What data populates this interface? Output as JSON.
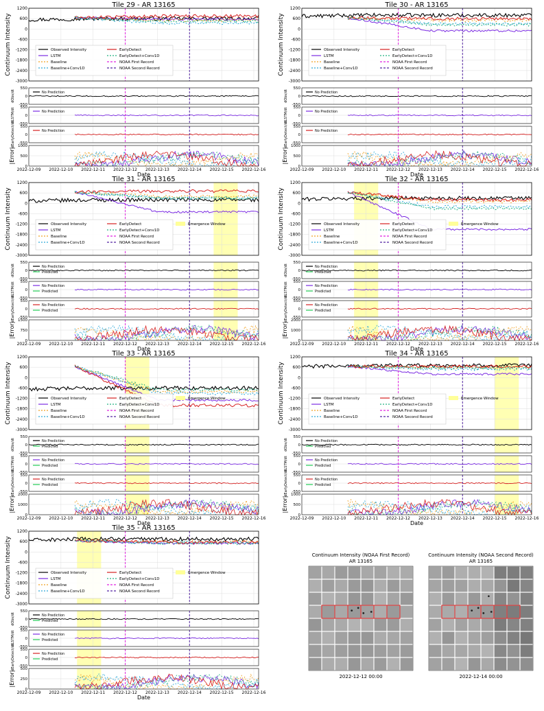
{
  "figure": {
    "date_label": "Date",
    "date_ticks": [
      "2022-12-09",
      "2022-12-10",
      "2022-12-11",
      "2022-12-12",
      "2022-12-13",
      "2022-12-14",
      "2022-12-15",
      "2022-12-16"
    ],
    "intensity_label": "Continuum Intensity",
    "intensity_ticks": [
      1200,
      600,
      0,
      -600,
      -1200,
      -1800,
      -2400,
      -3000
    ],
    "deriv_ticks": [
      550,
      0,
      -550
    ],
    "deriv_labels": [
      "dObs/dt",
      "dLSTM/dt",
      "dEarlyDetect/dt"
    ],
    "error_label": "|Error|",
    "noaa_first": "2022-12-12",
    "noaa_second": "2022-12-14",
    "colors": {
      "observed": "#000000",
      "lstm": "#7b2be2",
      "baseline": "#f0a020",
      "baseline_conv": "#2aa8d8",
      "early": "#d62020",
      "early_conv": "#20b080",
      "noaa1": "#e020e0",
      "noaa2": "#5020a0",
      "window": "#ffff99",
      "predicted": "#22cc55"
    },
    "legend_labels": {
      "observed": "Observed Intensity",
      "lstm": "LSTM",
      "baseline": "Baseline",
      "baseline_conv": "Baseline+Conv1D",
      "early": "EarlyDetect",
      "early_conv": "EarlyDetect+Conv1D",
      "noaa1": "NOAA First Record",
      "noaa2": "NOAA Second Record",
      "window": "Emergence Window",
      "no_prediction": "No Prediction",
      "predicted": "Predicted"
    }
  },
  "chart_data": [
    {
      "type": "line",
      "title": "Tile 29 - AR 13165",
      "ylabel": "Continuum Intensity",
      "xlabel": "Date",
      "ylim": [
        -3000,
        1200
      ],
      "emergence_window": null,
      "series_levels": {
        "observed": 600,
        "lstm": 560,
        "baseline": 500,
        "baseline_conv": 350,
        "early": 750,
        "early_conv": 450
      },
      "error_ylim": [
        0,
        1000
      ]
    },
    {
      "type": "line",
      "title": "Tile 30 - AR 13165",
      "ylabel": "Continuum Intensity",
      "xlabel": "Date",
      "ylim": [
        -3000,
        1200
      ],
      "emergence_window": null,
      "series_levels": {
        "observed": 800,
        "lstm": -100,
        "baseline": 500,
        "baseline_conv": 300,
        "early": 600,
        "early_conv": 250
      },
      "error_ylim": [
        0,
        1000
      ]
    },
    {
      "type": "line",
      "title": "Tile 31 - AR 13165",
      "ylabel": "Continuum Intensity",
      "xlabel": "Date",
      "ylim": [
        -3000,
        1200
      ],
      "emergence_window": [
        "2022-12-14 18:00",
        "2022-12-15 12:00"
      ],
      "series_levels": {
        "observed": 200,
        "lstm": -500,
        "baseline": 400,
        "baseline_conv": 300,
        "early": 700,
        "early_conv": 300
      },
      "error_ylim": [
        0,
        1500
      ]
    },
    {
      "type": "line",
      "title": "Tile 32 - AR 13165",
      "ylabel": "Continuum Intensity",
      "xlabel": "Date",
      "ylim": [
        -3000,
        1200
      ],
      "emergence_window": [
        "2022-12-10 15:00",
        "2022-12-11 09:00"
      ],
      "series_levels": {
        "observed": 300,
        "lstm": -1500,
        "baseline": 100,
        "baseline_conv": -200,
        "early": 200,
        "early_conv": -300
      },
      "error_ylim": [
        0,
        2000
      ]
    },
    {
      "type": "line",
      "title": "Tile 33 - AR 13165",
      "ylabel": "Continuum Intensity",
      "xlabel": "Date",
      "ylim": [
        -3000,
        1200
      ],
      "emergence_window": [
        "2022-12-12 00:00",
        "2022-12-12 18:00"
      ],
      "series_levels": {
        "observed": -600,
        "lstm": -1300,
        "baseline": -800,
        "baseline_conv": -900,
        "early": -1600,
        "early_conv": -700
      },
      "error_ylim": [
        0,
        2000
      ]
    },
    {
      "type": "line",
      "title": "Tile 34 - AR 13165",
      "ylabel": "Continuum Intensity",
      "xlabel": "Date",
      "ylim": [
        -3000,
        1200
      ],
      "emergence_window": [
        "2022-12-15 00:00",
        "2022-12-15 18:00"
      ],
      "series_levels": {
        "observed": 700,
        "lstm": 200,
        "baseline": 600,
        "baseline_conv": 500,
        "early": 650,
        "early_conv": 550
      },
      "error_ylim": [
        0,
        1000
      ]
    },
    {
      "type": "line",
      "title": "Tile 35 - AR 13165",
      "ylabel": "Continuum Intensity",
      "xlabel": "Date",
      "ylim": [
        -3000,
        1200
      ],
      "emergence_window": [
        "2022-12-10 12:00",
        "2022-12-11 06:00"
      ],
      "series_levels": {
        "observed": 750,
        "lstm": 500,
        "baseline": 600,
        "baseline_conv": 550,
        "early": 550,
        "early_conv": 500
      },
      "error_ylim": [
        0,
        500
      ]
    }
  ],
  "magnetograms": [
    {
      "title_line1": "Continuum Intensity (NOAA First Record)",
      "title_line2": "AR 13165",
      "timestamp": "2022-12-12 00:00"
    },
    {
      "title_line1": "Continuum Intensity (NOAA Second Record)",
      "title_line2": "AR 13165",
      "timestamp": "2022-12-14 00:00"
    }
  ]
}
